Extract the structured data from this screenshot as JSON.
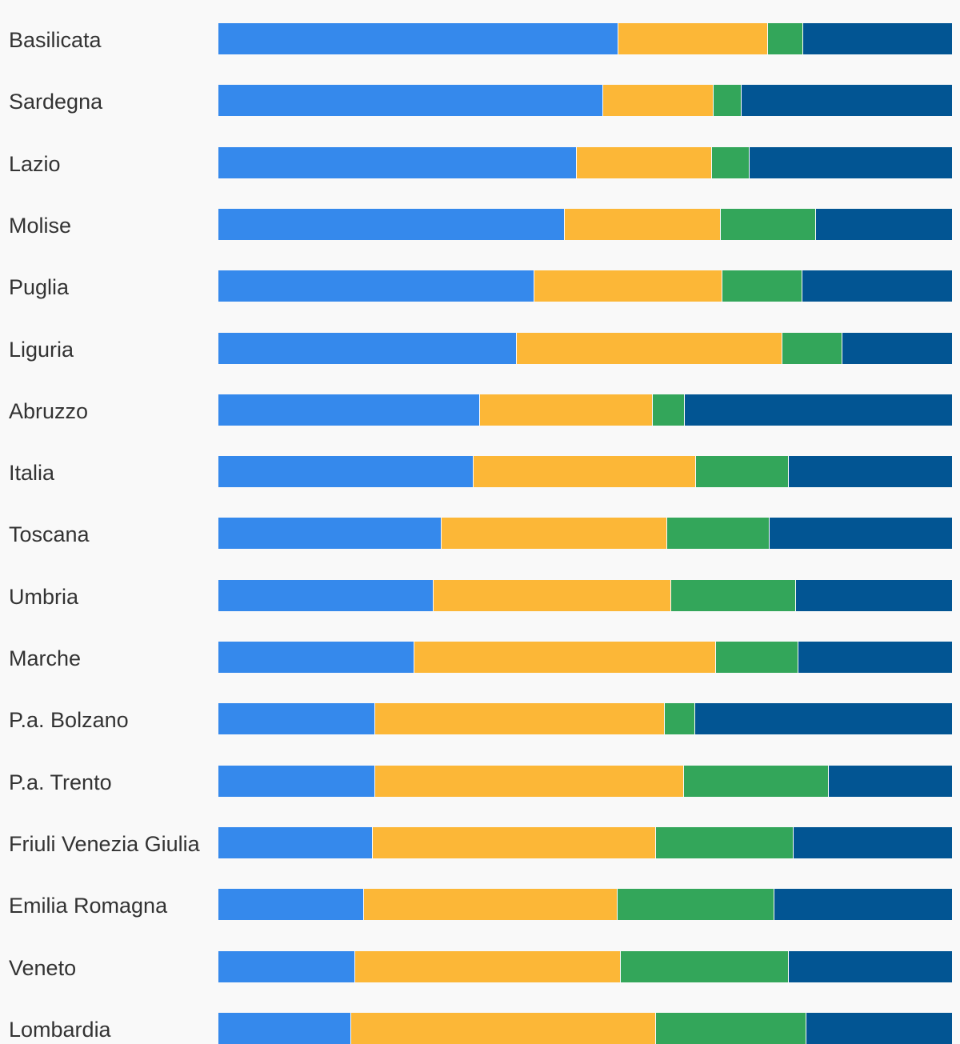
{
  "chart_data": {
    "type": "bar",
    "orientation": "horizontal",
    "stacked": true,
    "normalized": true,
    "categories": [
      "Basilicata",
      "Sardegna",
      "Lazio",
      "Molise",
      "Puglia",
      "Liguria",
      "Abruzzo",
      "Italia",
      "Toscana",
      "Umbria",
      "Marche",
      "P.a. Bolzano",
      "P.a. Trento",
      "Friuli Venezia Giulia",
      "Emilia Romagna",
      "Veneto",
      "Lombardia"
    ],
    "series": [
      {
        "color": "#3589ec",
        "values": [
          54.5,
          52.5,
          48.9,
          47.2,
          43.1,
          40.7,
          35.7,
          34.8,
          30.4,
          29.3,
          26.7,
          21.4,
          21.4,
          21.0,
          19.9,
          18.7,
          18.1
        ]
      },
      {
        "color": "#fcb737",
        "values": [
          20.4,
          15.0,
          18.4,
          21.3,
          25.6,
          36.2,
          23.5,
          30.3,
          30.8,
          32.4,
          41.1,
          39.4,
          42.1,
          38.6,
          34.5,
          36.2,
          41.6
        ]
      },
      {
        "color": "#33a65a",
        "values": [
          4.8,
          3.8,
          5.1,
          13.0,
          10.9,
          8.2,
          4.4,
          12.7,
          13.9,
          17.0,
          11.3,
          4.2,
          19.7,
          18.8,
          21.4,
          22.9,
          20.5
        ]
      },
      {
        "color": "#025593",
        "values": [
          20.3,
          28.7,
          27.6,
          18.5,
          20.4,
          14.9,
          36.4,
          22.2,
          24.9,
          21.3,
          20.9,
          35.0,
          16.8,
          21.6,
          24.2,
          22.2,
          19.8
        ]
      }
    ],
    "xlim": [
      0,
      100
    ],
    "grid": false,
    "legend": "none"
  }
}
